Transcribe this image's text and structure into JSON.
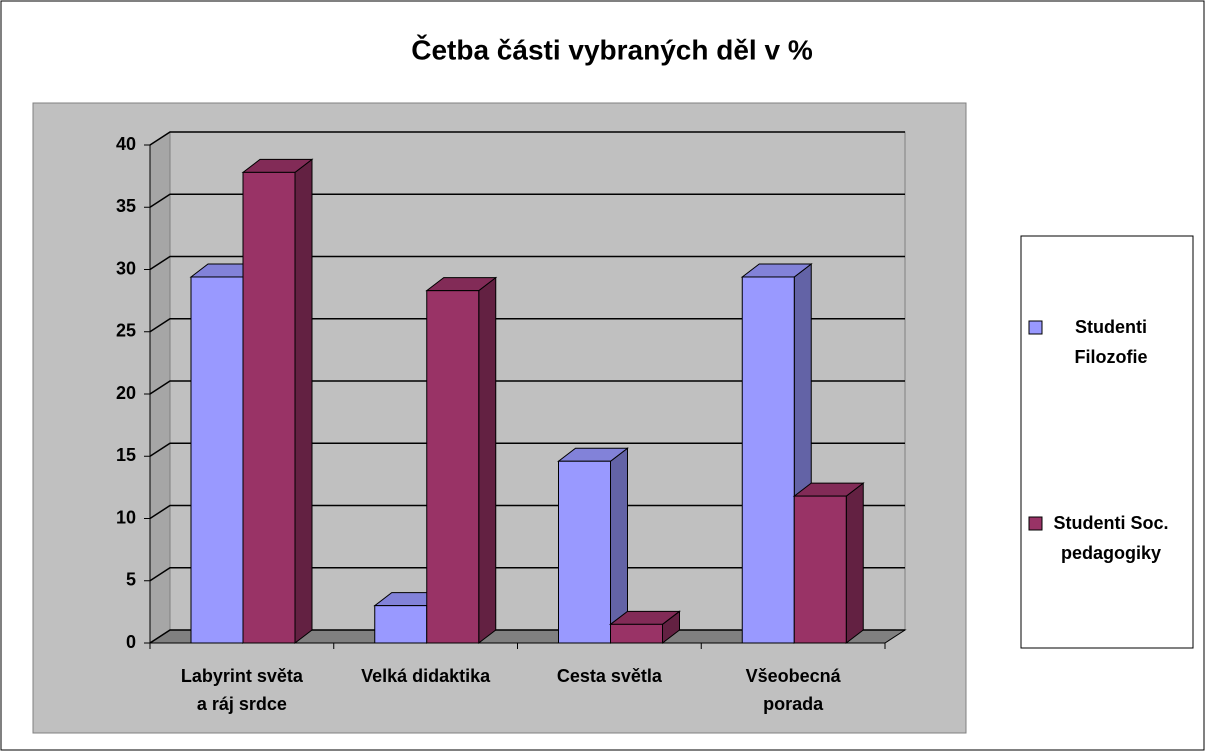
{
  "chart_data": {
    "type": "bar3d",
    "title": "Četba části vybraných děl v %",
    "categories": [
      "Labyrint světa a ráj srdce",
      "Velká didaktika",
      "Cesta světla",
      "Všeobecná porada"
    ],
    "series": [
      {
        "name": "Studenti Filozofie",
        "color": "#9999ff",
        "values": [
          29.4,
          3,
          14.6,
          29.4
        ]
      },
      {
        "name": "Studenti Soc. pedagogiky",
        "color": "#993366",
        "values": [
          37.8,
          28.3,
          1.5,
          11.8
        ]
      }
    ],
    "ylim": [
      0,
      40
    ],
    "yticks": [
      0,
      5,
      10,
      15,
      20,
      25,
      30,
      35,
      40
    ],
    "grid": true,
    "legend": "right"
  }
}
